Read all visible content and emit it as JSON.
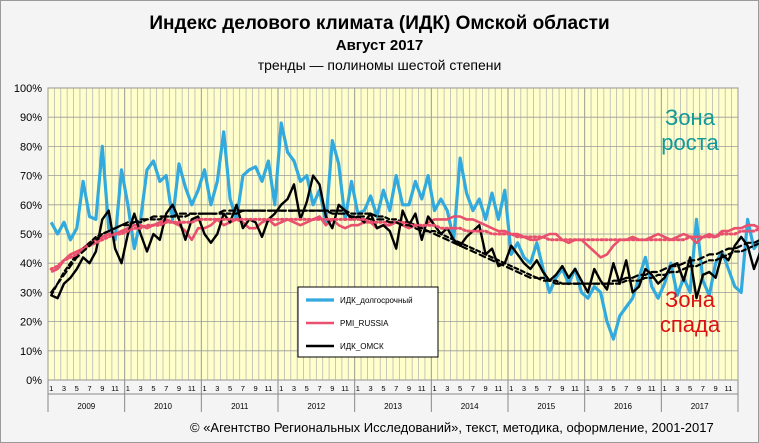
{
  "title": "Индекс делового климата (ИДК) Омской области",
  "subtitle": "Август 2017",
  "subtitle2": "тренды — полиномы шестой степени",
  "footer": "© «Агентство Региональных Исследований», текст, методика, оформление, 2001-2017",
  "annotations": {
    "growth_line1": "Зона",
    "growth_line2": "роста",
    "decline_line1": "Зона",
    "decline_line2": "спада"
  },
  "colors": {
    "plot_bg": "#ffffcc",
    "idk_long": "#33aadd",
    "pmi": "#e8506e",
    "idk_omsk": "#000000",
    "growth": "#119999",
    "decline": "#dd1111"
  },
  "chart_data": {
    "type": "line",
    "ylim": [
      0,
      100
    ],
    "y_ticks": [
      "0%",
      "10%",
      "20%",
      "30%",
      "40%",
      "50%",
      "60%",
      "70%",
      "80%",
      "90%",
      "100%"
    ],
    "x_month_labels": [
      "1",
      "3",
      "5",
      "7",
      "9",
      "11"
    ],
    "years": [
      "2009",
      "2010",
      "2011",
      "2012",
      "2013",
      "2014",
      "2015",
      "2016",
      "2017"
    ],
    "legend_position": "center-left",
    "series": [
      {
        "name": "ИДК_долгосрочный",
        "values": [
          54,
          50,
          54,
          48,
          52,
          68,
          56,
          55,
          80,
          52,
          48,
          72,
          60,
          45,
          55,
          72,
          75,
          68,
          70,
          55,
          74,
          66,
          60,
          65,
          72,
          60,
          68,
          85,
          62,
          55,
          70,
          72,
          73,
          68,
          75,
          60,
          88,
          78,
          75,
          68,
          70,
          60,
          65,
          54,
          82,
          74,
          55,
          68,
          57,
          58,
          63,
          56,
          65,
          58,
          70,
          60,
          60,
          68,
          62,
          70,
          58,
          62,
          58,
          48,
          76,
          64,
          58,
          62,
          55,
          64,
          55,
          65,
          43,
          47,
          42,
          40,
          47,
          38,
          30,
          35,
          38,
          33,
          38,
          30,
          28,
          32,
          30,
          20,
          14,
          22,
          25,
          28,
          35,
          42,
          32,
          28,
          33,
          40,
          29,
          35,
          30,
          55,
          34,
          29,
          40,
          44,
          38,
          32,
          30,
          55,
          45,
          48,
          55,
          53,
          52,
          61,
          57,
          52,
          55,
          58,
          57,
          56,
          58,
          48,
          50
        ],
        "trend_values": [
          29,
          33,
          37,
          40,
          43,
          45,
          47,
          49,
          50,
          51,
          52,
          53,
          53,
          54,
          54,
          55,
          55,
          55,
          56,
          56,
          56,
          56,
          57,
          57,
          57,
          57,
          57,
          57,
          57,
          57,
          58,
          58,
          58,
          58,
          58,
          58,
          58,
          58,
          58,
          58,
          58,
          58,
          58,
          58,
          58,
          58,
          58,
          57,
          57,
          57,
          57,
          56,
          56,
          55,
          55,
          54,
          54,
          53,
          52,
          51,
          51,
          50,
          49,
          48,
          47,
          46,
          45,
          44,
          43,
          42,
          41,
          40,
          39,
          38,
          37,
          36,
          35,
          35,
          34,
          34,
          33,
          33,
          33,
          33,
          33,
          33,
          33,
          33,
          33,
          33,
          34,
          34,
          34,
          35,
          35,
          36,
          36,
          37,
          37,
          38,
          39,
          39,
          40,
          41,
          41,
          42,
          43,
          44,
          44,
          45,
          46,
          47,
          48,
          49,
          50,
          51,
          52,
          53,
          54,
          55,
          56,
          57,
          58,
          58,
          59
        ]
      },
      {
        "name": "PMI_RUSSIA",
        "values": [
          37,
          38,
          41,
          43,
          44,
          45,
          47,
          48,
          49,
          50,
          50,
          51,
          52,
          53,
          53,
          52,
          53,
          54,
          55,
          54,
          53,
          51,
          48,
          52,
          52,
          53,
          55,
          53,
          54,
          55,
          54,
          52,
          52,
          54,
          55,
          53,
          54,
          55,
          54,
          53,
          54,
          55,
          56,
          53,
          55,
          53,
          52,
          53,
          53,
          54,
          54,
          52,
          53,
          53,
          54,
          53,
          52,
          53,
          52,
          54,
          55,
          55,
          55,
          56,
          56,
          55,
          55,
          54,
          53,
          52,
          51,
          51,
          50,
          50,
          49,
          48,
          48,
          49,
          50,
          50,
          48,
          47,
          48,
          48,
          46,
          44,
          42,
          43,
          46,
          48,
          48,
          49,
          48,
          48,
          49,
          50,
          49,
          48,
          49,
          50,
          49,
          47,
          49,
          50,
          49,
          51,
          51,
          52,
          52,
          53,
          53,
          52,
          51,
          54,
          55,
          53,
          54,
          54,
          55,
          55,
          56,
          56,
          57,
          57,
          56,
          55,
          55,
          53,
          54
        ],
        "trend_values": [
          38,
          39,
          41,
          42,
          43,
          45,
          46,
          47,
          48,
          49,
          50,
          50,
          51,
          52,
          52,
          53,
          53,
          53,
          54,
          54,
          54,
          54,
          54,
          55,
          55,
          55,
          55,
          55,
          55,
          55,
          55,
          55,
          55,
          55,
          55,
          55,
          55,
          55,
          55,
          55,
          55,
          55,
          55,
          55,
          55,
          55,
          55,
          55,
          55,
          55,
          54,
          54,
          54,
          54,
          54,
          54,
          53,
          53,
          53,
          53,
          53,
          52,
          52,
          52,
          52,
          51,
          51,
          51,
          51,
          50,
          50,
          50,
          50,
          49,
          49,
          49,
          49,
          49,
          48,
          48,
          48,
          48,
          48,
          48,
          48,
          48,
          48,
          48,
          48,
          48,
          48,
          48,
          48,
          48,
          48,
          48,
          48,
          48,
          48,
          48,
          49,
          49,
          49,
          49,
          49,
          50,
          50,
          50,
          51,
          51,
          51,
          52,
          52,
          52,
          53,
          53,
          53,
          54,
          54,
          54,
          55,
          55,
          55,
          56,
          56,
          56,
          56,
          55,
          55
        ]
      },
      {
        "name": "ИДК_ОМСК",
        "values": [
          29,
          28,
          33,
          35,
          38,
          42,
          40,
          44,
          55,
          58,
          45,
          40,
          50,
          57,
          50,
          44,
          50,
          48,
          57,
          60,
          55,
          48,
          55,
          56,
          50,
          47,
          50,
          57,
          54,
          60,
          52,
          55,
          54,
          49,
          55,
          57,
          60,
          62,
          67,
          55,
          61,
          70,
          67,
          56,
          52,
          60,
          58,
          55,
          56,
          54,
          57,
          52,
          53,
          51,
          45,
          58,
          53,
          57,
          48,
          56,
          53,
          50,
          52,
          48,
          46,
          49,
          51,
          53,
          43,
          45,
          39,
          40,
          46,
          43,
          40,
          38,
          41,
          37,
          34,
          36,
          39,
          35,
          38,
          34,
          30,
          38,
          34,
          31,
          40,
          33,
          41,
          30,
          32,
          38,
          36,
          33,
          35,
          39,
          40,
          34,
          42,
          28,
          36,
          37,
          35,
          43,
          41,
          46,
          49,
          46,
          38,
          44,
          52,
          58,
          35,
          45,
          48,
          50,
          40,
          43,
          48,
          45,
          47,
          41,
          43,
          40,
          36
        ],
        "trend_values": [
          30,
          33,
          36,
          39,
          42,
          44,
          46,
          48,
          50,
          51,
          52,
          53,
          54,
          54,
          55,
          55,
          56,
          56,
          56,
          56,
          57,
          57,
          57,
          57,
          57,
          57,
          57,
          58,
          58,
          58,
          58,
          58,
          58,
          58,
          58,
          58,
          58,
          58,
          58,
          58,
          58,
          58,
          58,
          58,
          57,
          57,
          57,
          56,
          56,
          56,
          55,
          55,
          55,
          54,
          54,
          53,
          53,
          52,
          51,
          51,
          50,
          49,
          48,
          47,
          46,
          45,
          44,
          43,
          42,
          41,
          40,
          39,
          38,
          37,
          36,
          35,
          35,
          34,
          34,
          33,
          33,
          33,
          33,
          33,
          33,
          33,
          33,
          33,
          34,
          34,
          35,
          35,
          36,
          36,
          37,
          37,
          38,
          39,
          39,
          40,
          41,
          41,
          42,
          43,
          43,
          44,
          45,
          45,
          46,
          47,
          47,
          48,
          48,
          49,
          49,
          50,
          50,
          50,
          51,
          51,
          51,
          51,
          50,
          49,
          47,
          45,
          43
        ]
      }
    ]
  }
}
